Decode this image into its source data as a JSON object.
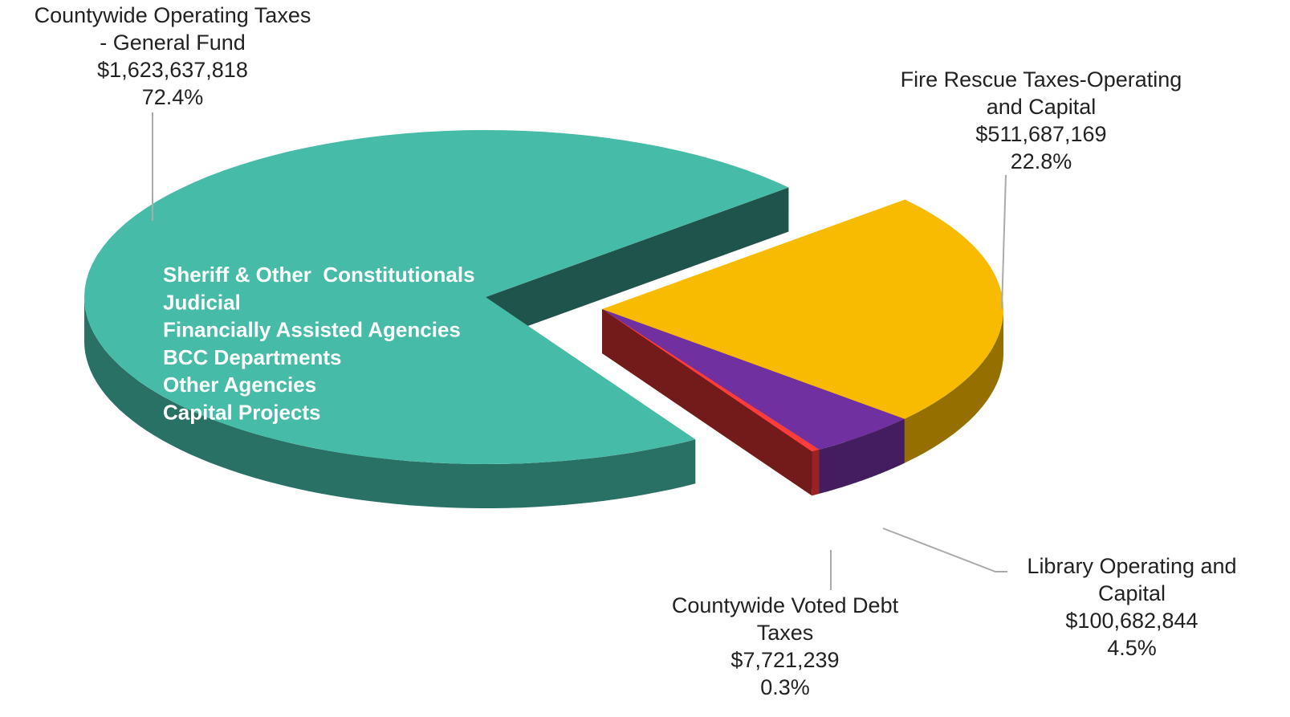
{
  "chart_data": {
    "type": "pie",
    "categories": [
      "Fire Rescue Taxes-Operating and Capital",
      "Library Operating and Capital",
      "Countywide Voted Debt Taxes",
      "Countywide Operating Taxes - General Fund"
    ],
    "values": [
      511687169,
      100682844,
      7721239,
      1623637818
    ],
    "value_labels": [
      "$511,687,169",
      "$100,682,844",
      "$7,721,239",
      "$1,623,637,818"
    ],
    "percent_values": [
      22.8,
      4.5,
      0.3,
      72.4
    ],
    "percent_labels": [
      "22.8%",
      "4.5%",
      "0.3%",
      "72.4%"
    ],
    "colors": [
      "#f9bb00",
      "#7030a0",
      "#ff3b3b",
      "#45bba8"
    ],
    "annotations": [
      "Sheriff & Other  Constitutionals",
      "Judicial",
      "Financially Assisted Agencies",
      "BCC Departments",
      "Other Agencies",
      "Capital Projects"
    ]
  }
}
